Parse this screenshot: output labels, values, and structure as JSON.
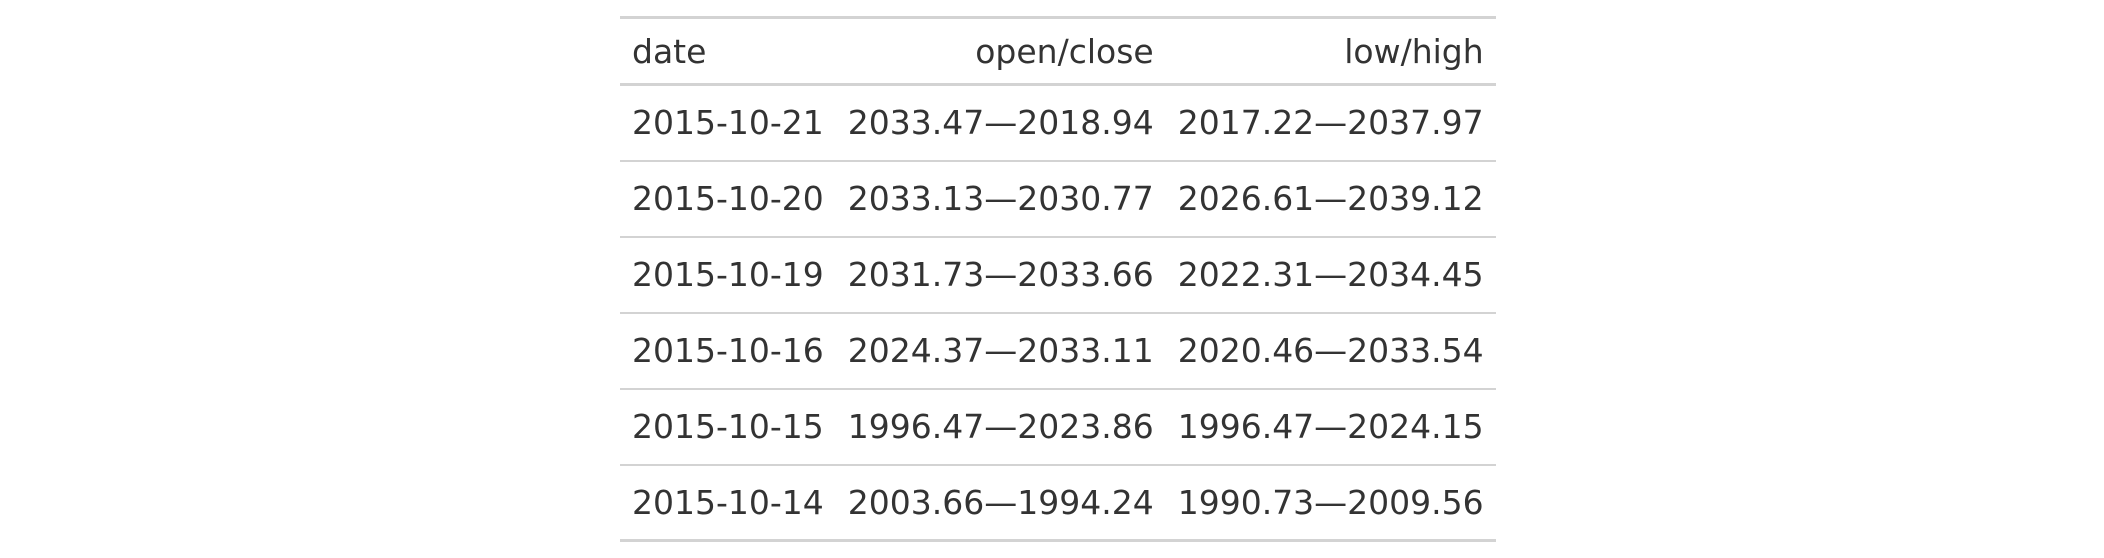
{
  "table": {
    "columns": [
      "date",
      "open/close",
      "low/high"
    ],
    "rows": [
      {
        "date": "2015-10-21",
        "open_close": "2033.47—2018.94",
        "low_high": "2017.22—2037.97"
      },
      {
        "date": "2015-10-20",
        "open_close": "2033.13—2030.77",
        "low_high": "2026.61—2039.12"
      },
      {
        "date": "2015-10-19",
        "open_close": "2031.73—2033.66",
        "low_high": "2022.31—2034.45"
      },
      {
        "date": "2015-10-16",
        "open_close": "2024.37—2033.11",
        "low_high": "2020.46—2033.54"
      },
      {
        "date": "2015-10-15",
        "open_close": "1996.47—2023.86",
        "low_high": "1996.47—2024.15"
      },
      {
        "date": "2015-10-14",
        "open_close": "2003.66—1994.24",
        "low_high": "1990.73—2009.56"
      }
    ]
  }
}
